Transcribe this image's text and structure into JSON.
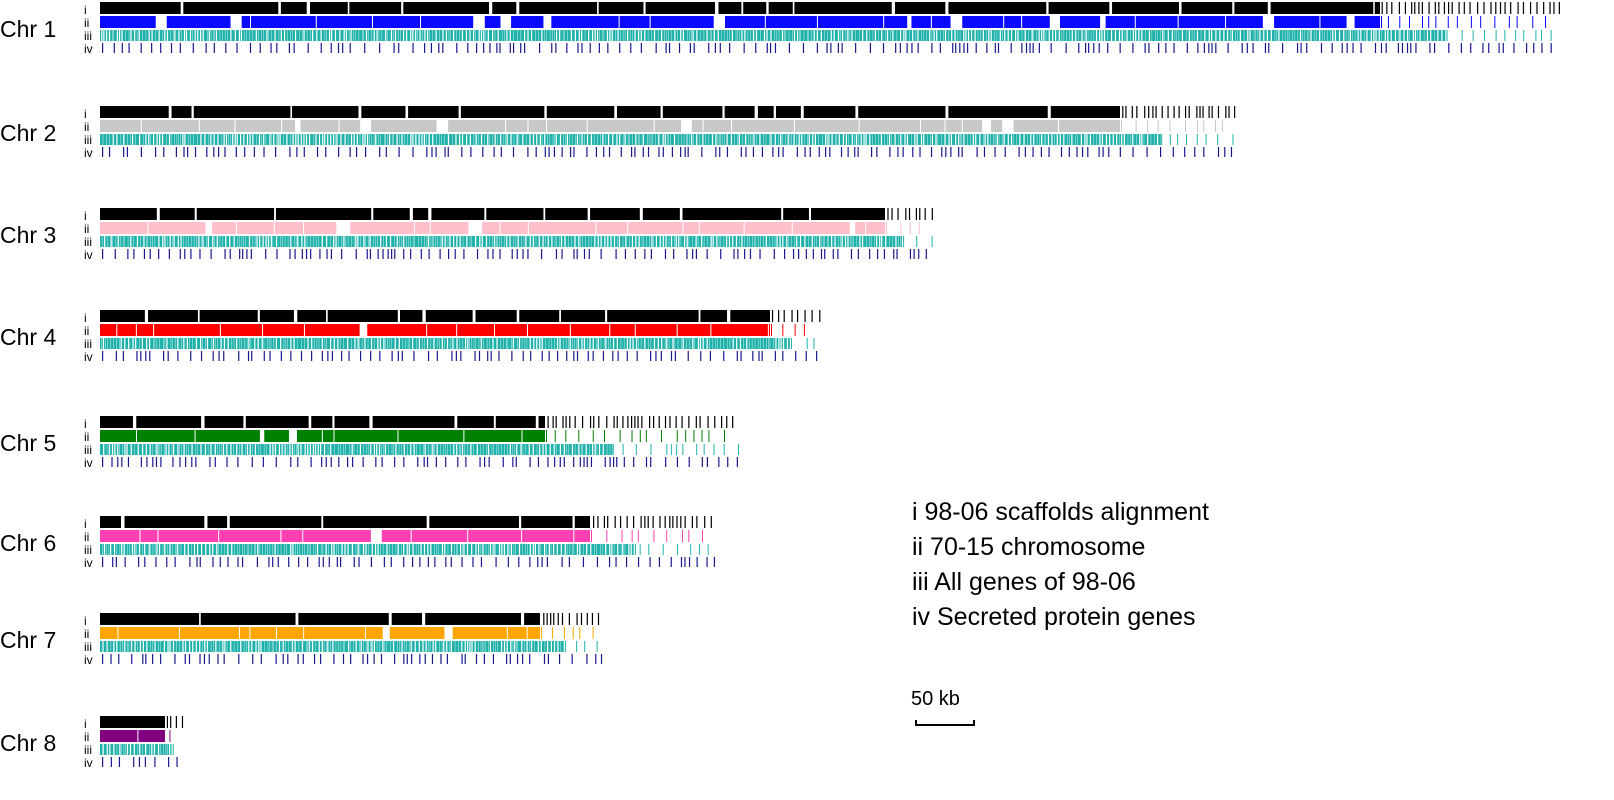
{
  "chromosomes": [
    {
      "label": "Chr 1",
      "color": "#0a0aff"
    },
    {
      "label": "Chr 2",
      "color": "#c8c8c8"
    },
    {
      "label": "Chr 3",
      "color": "#ffc0cb"
    },
    {
      "label": "Chr 4",
      "color": "#ff0000"
    },
    {
      "label": "Chr 5",
      "color": "#008000"
    },
    {
      "label": "Chr 6",
      "color": "#ff3fb4"
    },
    {
      "label": "Chr 7",
      "color": "#ffa500"
    },
    {
      "label": "Chr 8",
      "color": "#800080"
    }
  ],
  "row_labels": [
    "i",
    "ii",
    "iii",
    "iv"
  ],
  "track_colors": {
    "scaffolds": "#000000",
    "all_genes": "#20b2aa",
    "secreted": "#1a1a8c"
  },
  "legend": [
    "i 98-06 scaffolds alignment",
    "ii 70-15 chromosome",
    "iii All genes of 98-06",
    "iv Secreted protein genes"
  ],
  "scale_bar": {
    "label": "50 kb"
  }
}
